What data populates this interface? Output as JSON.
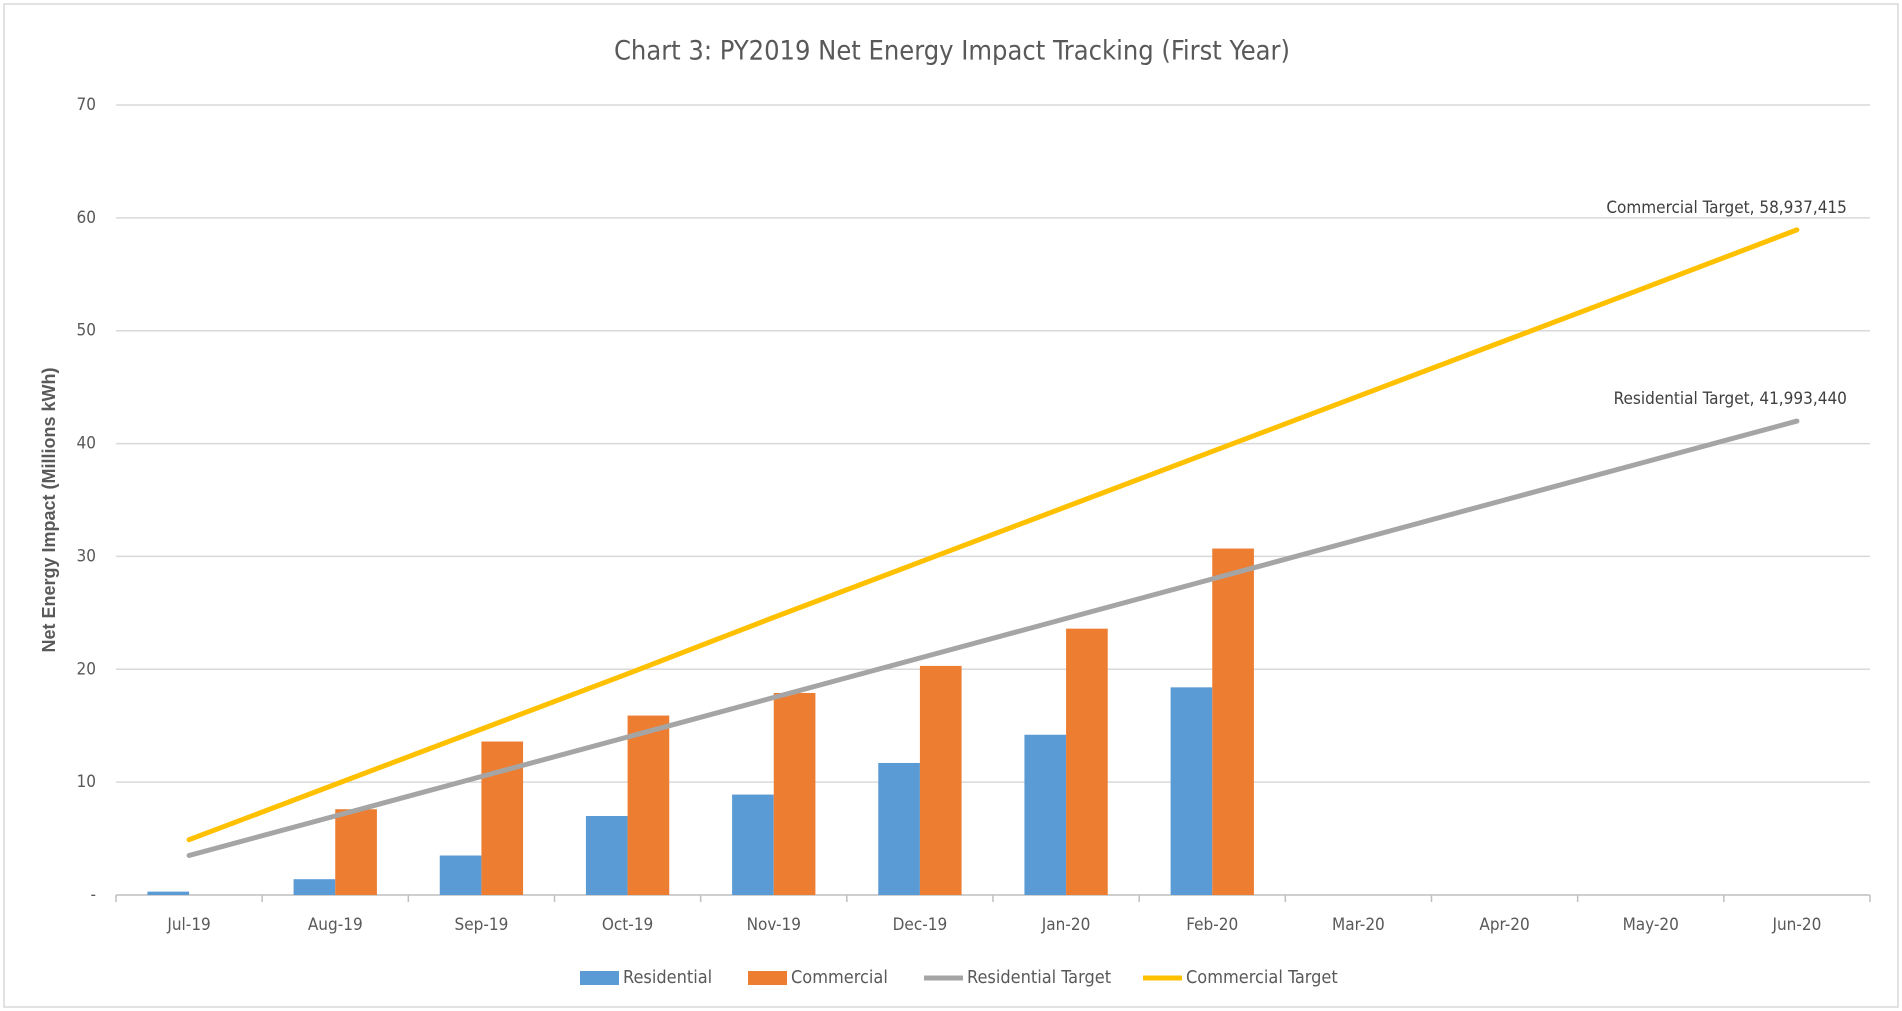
{
  "chart_data": {
    "type": "bar",
    "title": "Chart 3: PY2019 Net Energy Impact Tracking (First Year)",
    "y_axis_label": "Net Energy Impact (Millions kWh)",
    "categories": [
      "Jul-19",
      "Aug-19",
      "Sep-19",
      "Oct-19",
      "Nov-19",
      "Dec-19",
      "Jan-20",
      "Feb-20",
      "Mar-20",
      "Apr-20",
      "May-20",
      "Jun-20"
    ],
    "series": [
      {
        "name": "Residential",
        "type": "bar",
        "color": "#5b9bd5",
        "values": [
          0.3,
          1.4,
          3.5,
          7.0,
          8.9,
          11.7,
          14.2,
          18.4,
          null,
          null,
          null,
          null
        ]
      },
      {
        "name": "Commercial",
        "type": "bar",
        "color": "#ed7d31",
        "values": [
          null,
          7.6,
          13.6,
          15.9,
          17.9,
          20.3,
          23.6,
          30.7,
          null,
          null,
          null,
          null
        ]
      },
      {
        "name": "Residential Target",
        "type": "line",
        "color": "#a5a5a5",
        "values": [
          3.5,
          7.0,
          10.5,
          14.0,
          17.5,
          21.0,
          24.5,
          28.0,
          31.5,
          35.0,
          38.5,
          41.99344
        ],
        "value_labels": [
          null,
          null,
          null,
          null,
          null,
          null,
          null,
          null,
          null,
          null,
          null,
          "Residential Target, 41,993,440"
        ]
      },
      {
        "name": "Commercial Target",
        "type": "line",
        "color": "#ffc000",
        "values": [
          4.9,
          9.8,
          14.7,
          19.6,
          24.6,
          29.5,
          34.4,
          39.3,
          44.2,
          49.1,
          54.0,
          58.937415
        ],
        "value_labels": [
          null,
          null,
          null,
          null,
          null,
          null,
          null,
          null,
          null,
          null,
          null,
          "Commercial Target, 58,937,415"
        ]
      }
    ],
    "ylim": [
      0,
      70
    ],
    "yticks": [
      {
        "value": 0,
        "label": "-"
      },
      10,
      20,
      30,
      40,
      50,
      60,
      70
    ],
    "grid": true,
    "legend": "bottom"
  }
}
